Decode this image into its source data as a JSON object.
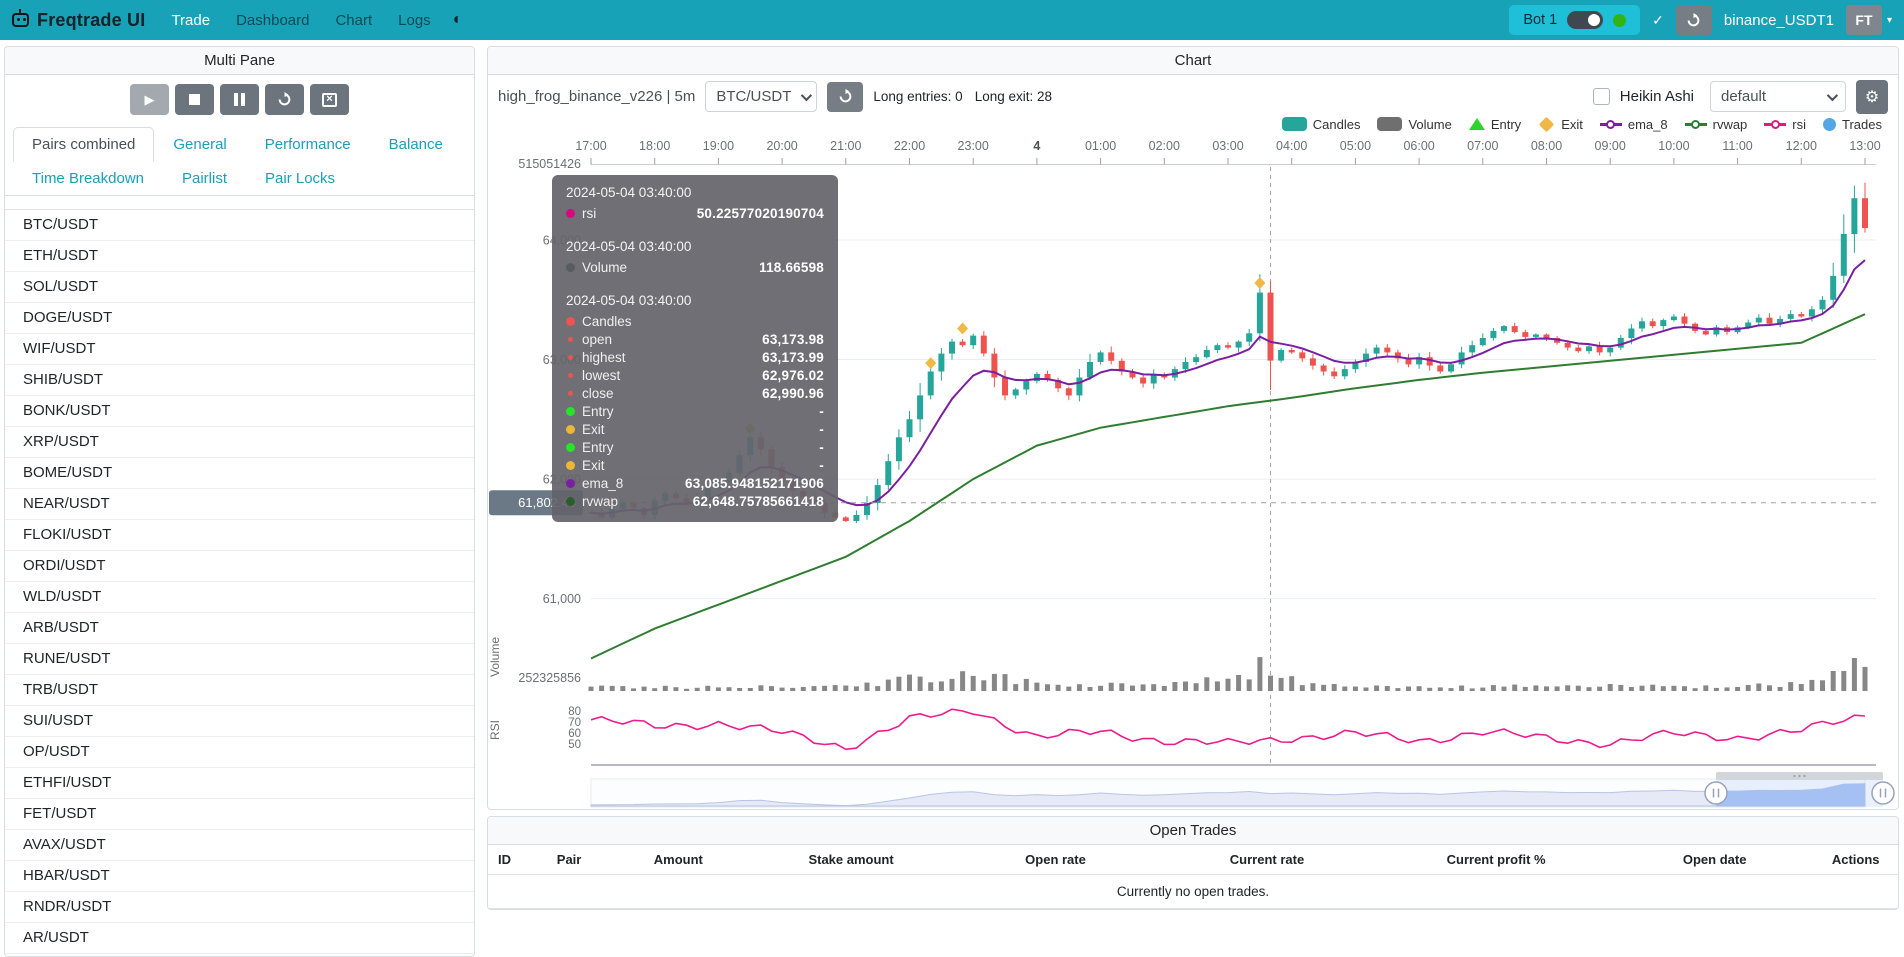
{
  "navbar": {
    "brand": "Freqtrade UI",
    "links": [
      "Trade",
      "Dashboard",
      "Chart",
      "Logs"
    ],
    "active_link": "Trade",
    "bot_name": "Bot 1",
    "user": "binance_USDT1",
    "avatar": "FT"
  },
  "sidebar": {
    "title": "Multi Pane",
    "tabs": [
      "Pairs combined",
      "General",
      "Performance",
      "Balance",
      "Time Breakdown",
      "Pairlist",
      "Pair Locks"
    ],
    "active_tab": "Pairs combined",
    "pairs": [
      "BTC/USDT",
      "ETH/USDT",
      "SOL/USDT",
      "DOGE/USDT",
      "WIF/USDT",
      "SHIB/USDT",
      "BONK/USDT",
      "XRP/USDT",
      "BOME/USDT",
      "NEAR/USDT",
      "FLOKI/USDT",
      "ORDI/USDT",
      "WLD/USDT",
      "ARB/USDT",
      "RUNE/USDT",
      "TRB/USDT",
      "SUI/USDT",
      "OP/USDT",
      "ETHFI/USDT",
      "FET/USDT",
      "AVAX/USDT",
      "HBAR/USDT",
      "RNDR/USDT",
      "AR/USDT"
    ]
  },
  "chart": {
    "panel_title": "Chart",
    "strategy": "high_frog_binance_v226 | 5m",
    "pair": "BTC/USDT",
    "entries": "Long entries: 0",
    "exits": "Long exit: 28",
    "heikin": "Heikin Ashi",
    "plot_profile": "default",
    "legend": [
      {
        "label": "Candles",
        "shape": "rect",
        "color": "#26a69a"
      },
      {
        "label": "Volume",
        "shape": "rect",
        "color": "#6f6f6f"
      },
      {
        "label": "Entry",
        "shape": "triangle",
        "color": "#2fd32f"
      },
      {
        "label": "Exit",
        "shape": "diamond",
        "color": "#f0b848"
      },
      {
        "label": "ema_8",
        "shape": "ring",
        "color": "#7b1fa2"
      },
      {
        "label": "rvwap",
        "shape": "ring",
        "color": "#2f7d31"
      },
      {
        "label": "rsi",
        "shape": "ring",
        "color": "#e3197f"
      },
      {
        "label": "Trades",
        "shape": "circle",
        "color": "#55a6e3"
      }
    ]
  },
  "tooltip": {
    "sections": [
      {
        "time": "2024-05-04 03:40:00",
        "rows": [
          {
            "marker": "dot",
            "color": "#d6077f",
            "label": "rsi",
            "value": "50.22577020190704"
          }
        ]
      },
      {
        "time": "2024-05-04 03:40:00",
        "rows": [
          {
            "marker": "dot",
            "color": "#585c61",
            "label": "Volume",
            "value": "118.66598"
          }
        ]
      },
      {
        "time": "2024-05-04 03:40:00",
        "rows": [
          {
            "marker": "dot",
            "color": "#ef5350",
            "label": "Candles",
            "value": ""
          },
          {
            "marker": "small",
            "color": "#ef5350",
            "label": "open",
            "value": "63,173.98"
          },
          {
            "marker": "small",
            "color": "#ef5350",
            "label": "highest",
            "value": "63,173.99"
          },
          {
            "marker": "small",
            "color": "#ef5350",
            "label": "lowest",
            "value": "62,976.02"
          },
          {
            "marker": "small",
            "color": "#ef5350",
            "label": "close",
            "value": "62,990.96"
          },
          {
            "marker": "dot",
            "color": "#27e427",
            "label": "Entry",
            "value": "-"
          },
          {
            "marker": "dot",
            "color": "#efb636",
            "label": "Exit",
            "value": "-"
          },
          {
            "marker": "dot",
            "color": "#27e427",
            "label": "Entry",
            "value": "-"
          },
          {
            "marker": "dot",
            "color": "#efb636",
            "label": "Exit",
            "value": "-"
          },
          {
            "marker": "dot",
            "color": "#7b1fa2",
            "label": "ema_8",
            "value": "63,085.948152171906"
          },
          {
            "marker": "dot",
            "color": "#2a5e2a",
            "label": "rvwap",
            "value": "62,648.75785661418"
          }
        ]
      }
    ]
  },
  "open_trades": {
    "title": "Open Trades",
    "columns": [
      "ID",
      "Pair",
      "Amount",
      "Stake amount",
      "Open rate",
      "Current rate",
      "Current profit %",
      "Open date",
      "Actions"
    ],
    "empty": "Currently no open trades."
  },
  "chart_data": {
    "type": "candlestick+volume+rsi",
    "pair": "BTC/USDT",
    "timeframe": "5m",
    "time_labels": [
      "17:00",
      "18:00",
      "19:00",
      "20:00",
      "21:00",
      "22:00",
      "23:00",
      "4",
      "01:00",
      "02:00",
      "03:00",
      "04:00",
      "05:00",
      "06:00",
      "07:00",
      "08:00",
      "09:00",
      "10:00",
      "11:00",
      "12:00",
      "13:00"
    ],
    "price_ticks": [
      {
        "v": 64000,
        "label": "64,000"
      },
      {
        "v": 63000,
        "label": "63,000"
      },
      {
        "v": 62000,
        "label": "62,000"
      },
      {
        "v": 61000,
        "label": "61,000"
      }
    ],
    "top_axis_label": "515051426",
    "volume_tick_label": "252325856",
    "volume_axis_title": "Volume",
    "rsi_axis_title": "RSI",
    "rsi_ticks": [
      80,
      70,
      60,
      50
    ],
    "price_line": {
      "value": 61802.4,
      "label": "61,802.40"
    },
    "crosshair_index": 64,
    "closes": [
      61720,
      61680,
      61750,
      61800,
      61760,
      61700,
      61820,
      61880,
      61840,
      61790,
      61850,
      61920,
      61980,
      62050,
      62200,
      62350,
      62250,
      62100,
      61980,
      61900,
      61850,
      61800,
      61720,
      61680,
      61650,
      61700,
      61800,
      61950,
      62150,
      62350,
      62500,
      62700,
      62900,
      63050,
      63150,
      63120,
      63200,
      63050,
      62850,
      62700,
      62750,
      62820,
      62880,
      62830,
      62760,
      62700,
      62850,
      62980,
      63060,
      62990,
      62900,
      62850,
      62800,
      62870,
      62850,
      62920,
      62980,
      63020,
      63080,
      63120,
      63100,
      63150,
      63220,
      63560,
      62991,
      63080,
      63060,
      63010,
      62950,
      62900,
      62860,
      62920,
      62980,
      63050,
      63100,
      63060,
      63010,
      62960,
      63020,
      62950,
      62900,
      62960,
      63060,
      63120,
      63180,
      63240,
      63280,
      63230,
      63190,
      63210,
      63180,
      63140,
      63100,
      63070,
      63110,
      63060,
      63100,
      63180,
      63260,
      63320,
      63280,
      63330,
      63360,
      63300,
      63240,
      63210,
      63270,
      63230,
      63270,
      63310,
      63350,
      63300,
      63340,
      63380,
      63360,
      63420,
      63500,
      63700,
      64050,
      64350,
      64100
    ],
    "rvwap_hourly": [
      60500,
      60750,
      60950,
      61150,
      61350,
      61650,
      62000,
      62280,
      62430,
      62520,
      62610,
      62680,
      62760,
      62830,
      62890,
      62940,
      62990,
      63040,
      63090,
      63140,
      63380
    ],
    "rsi_hourly": [
      72,
      66,
      69,
      60,
      47,
      72,
      81,
      56,
      61,
      53,
      50,
      56,
      59,
      53,
      61,
      55,
      51,
      59,
      56,
      62,
      76
    ],
    "volume_hourly": [
      35,
      30,
      32,
      34,
      40,
      95,
      130,
      65,
      50,
      42,
      120,
      90,
      45,
      38,
      34,
      48,
      42,
      36,
      32,
      70,
      230
    ],
    "exit_markers": [
      {
        "i": 15,
        "p": 62420
      },
      {
        "i": 32,
        "p": 62970
      },
      {
        "i": 35,
        "p": 63260
      },
      {
        "i": 63,
        "p": 63640
      }
    ],
    "colors": {
      "up": "#26a69a",
      "down": "#ef5350",
      "ema": "#7b1fa2",
      "rvwap": "#2f7d31",
      "rsi": "#ec1c8d",
      "volume": "#878787"
    }
  }
}
